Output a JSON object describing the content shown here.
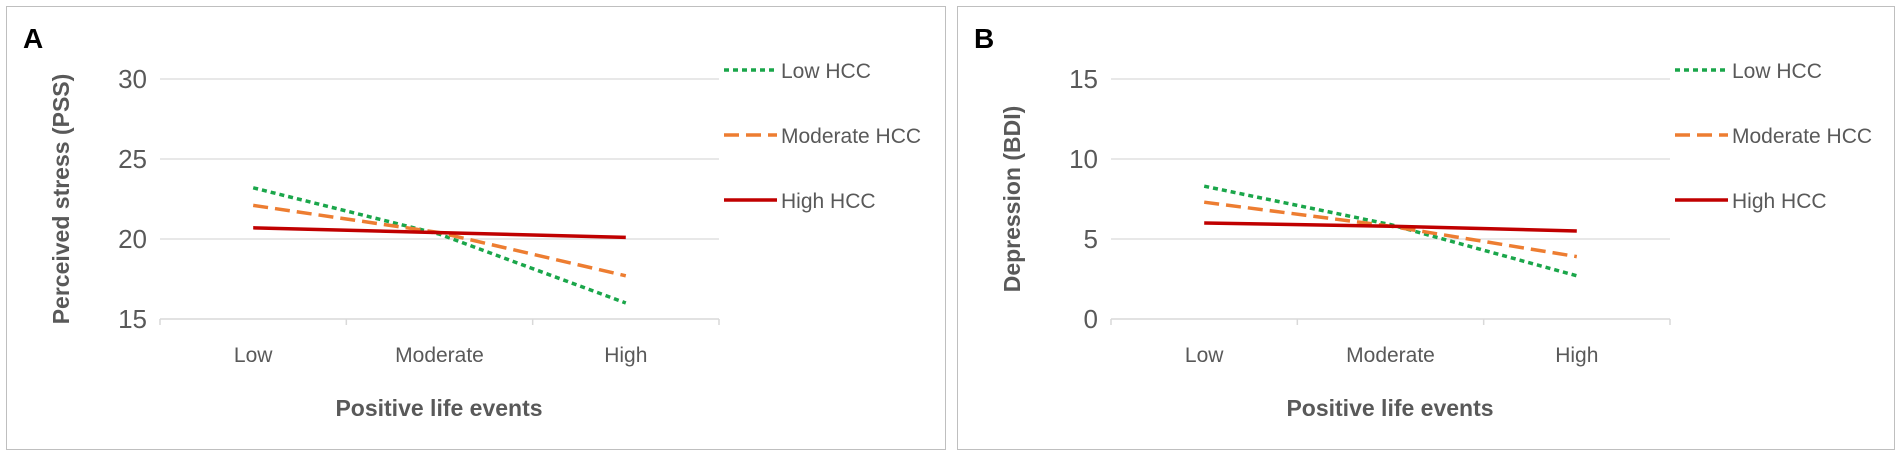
{
  "chart_data": [
    {
      "type": "line",
      "panel_label": "A",
      "xlabel": "Positive life events",
      "ylabel": "Perceived stress (PSS)",
      "categories": [
        "Low",
        "Moderate",
        "High"
      ],
      "yticks": [
        15,
        20,
        25,
        30
      ],
      "ylim": [
        15,
        30
      ],
      "grid": true,
      "legend": "right",
      "series": [
        {
          "name": "Low HCC",
          "values": [
            23.2,
            20.3,
            16.0
          ],
          "color": "#1aa64a",
          "style": "dotted"
        },
        {
          "name": "Moderate HCC",
          "values": [
            22.1,
            20.4,
            17.7
          ],
          "color": "#ed7d31",
          "style": "dashed"
        },
        {
          "name": "High HCC",
          "values": [
            20.7,
            20.4,
            20.1
          ],
          "color": "#c00000",
          "style": "solid"
        }
      ]
    },
    {
      "type": "line",
      "panel_label": "B",
      "xlabel": "Positive life events",
      "ylabel": "Depression (BDI)",
      "categories": [
        "Low",
        "Moderate",
        "High"
      ],
      "yticks": [
        0,
        5,
        10,
        15
      ],
      "ylim": [
        0,
        15
      ],
      "grid": true,
      "legend": "right",
      "series": [
        {
          "name": "Low HCC",
          "values": [
            8.3,
            5.9,
            2.7
          ],
          "color": "#1aa64a",
          "style": "dotted"
        },
        {
          "name": "Moderate HCC",
          "values": [
            7.3,
            5.8,
            3.9
          ],
          "color": "#ed7d31",
          "style": "dashed"
        },
        {
          "name": "High HCC",
          "values": [
            6.0,
            5.8,
            5.5
          ],
          "color": "#c00000",
          "style": "solid"
        }
      ]
    }
  ]
}
